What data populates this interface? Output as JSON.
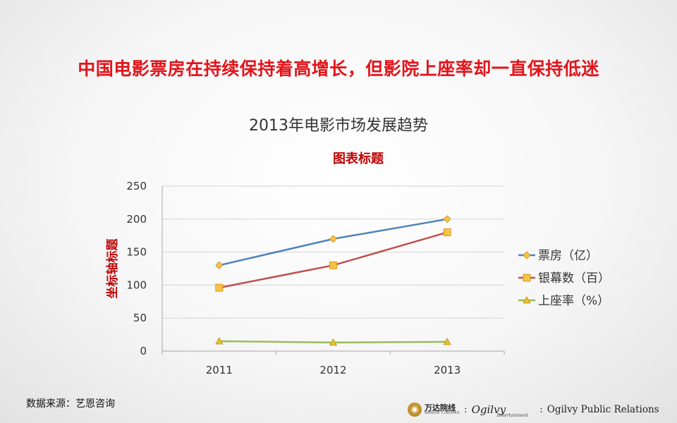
{
  "headline": "中国电影票房在持续保持着高增长，但影院上座率却一直保持低迷",
  "subtitle": "2013年电影市场发展趋势",
  "source": "数据来源：艺恩咨询",
  "footer": {
    "wanda_cn": "万达院线",
    "wanda_en": "WANDA CINEMAS",
    "ogilvy_entertainment": "Ogilvy",
    "ogilvy_entertainment_sub": "Entertainment",
    "ogilvy_pr": "Ogilvy Public Relations",
    "separator": ":"
  },
  "chart_data": {
    "type": "line",
    "title": "图表标题",
    "ylabel": "坐标轴标题",
    "xlabel": "",
    "categories": [
      "2011",
      "2012",
      "2013"
    ],
    "ylim": [
      0,
      250
    ],
    "yticks": [
      0,
      50,
      100,
      150,
      200,
      250
    ],
    "grid": true,
    "legend": "right",
    "series": [
      {
        "name": "票房（亿）",
        "values": [
          130,
          170,
          200
        ],
        "color": "#4f81bd",
        "marker": "diamond"
      },
      {
        "name": "银幕数（百）",
        "values": [
          96,
          130,
          180
        ],
        "color": "#c0504d",
        "marker": "square"
      },
      {
        "name": "上座率（%）",
        "values": [
          15,
          13,
          14
        ],
        "color": "#9bbb59",
        "marker": "triangle"
      }
    ],
    "title_color": "#c00000",
    "ylabel_color": "#c00000"
  }
}
